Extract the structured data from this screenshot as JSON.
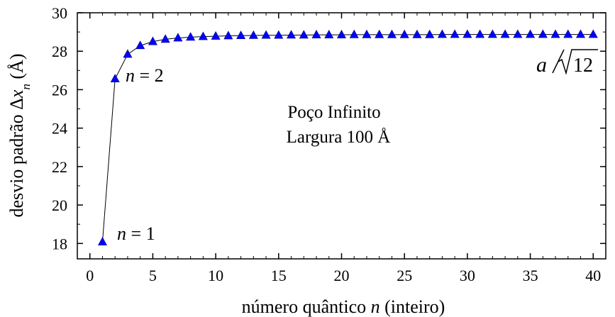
{
  "chart_data": {
    "type": "line",
    "xlabel_main": "número quântico ",
    "xlabel_var": "n",
    "xlabel_tail": " (inteiro)",
    "ylabel_main": "desvio padrão Δ",
    "ylabel_var": "x",
    "ylabel_sub": "n",
    "ylabel_unit": " (Å)",
    "xlim": [
      -1,
      41
    ],
    "ylim": [
      17.2,
      30
    ],
    "xticks": [
      0,
      5,
      10,
      15,
      20,
      25,
      30,
      35,
      40
    ],
    "yticks": [
      18,
      20,
      22,
      24,
      26,
      28,
      30
    ],
    "x_minor_step": 1,
    "y_minor_step": 1,
    "grid": false,
    "marker": "triangle",
    "color": "#0000ff",
    "series": [
      {
        "x": [
          1,
          2,
          3,
          4,
          5,
          6,
          7,
          8,
          9,
          10,
          11,
          12,
          13,
          14,
          15,
          16,
          17,
          18,
          19,
          20,
          21,
          22,
          23,
          24,
          25,
          26,
          27,
          28,
          29,
          30,
          31,
          32,
          33,
          34,
          35,
          36,
          37,
          38,
          39,
          40
        ],
        "values": [
          18.08,
          26.56,
          27.84,
          28.29,
          28.5,
          28.62,
          28.69,
          28.73,
          28.76,
          28.78,
          28.8,
          28.81,
          28.82,
          28.83,
          28.83,
          28.84,
          28.84,
          28.85,
          28.85,
          28.85,
          28.86,
          28.86,
          28.86,
          28.86,
          28.86,
          28.86,
          28.86,
          28.87,
          28.87,
          28.87,
          28.87,
          28.87,
          28.87,
          28.87,
          28.87,
          28.87,
          28.87,
          28.87,
          28.87,
          28.87
        ]
      }
    ],
    "annotations": {
      "n1_var": "n",
      "n1_rest": " = 1",
      "n2_var": "n",
      "n2_rest": " = 2",
      "limit_var": "a",
      "limit_value": "12",
      "box_line1": "Poço Infinito",
      "box_line2": "Largura 100 Å"
    }
  }
}
